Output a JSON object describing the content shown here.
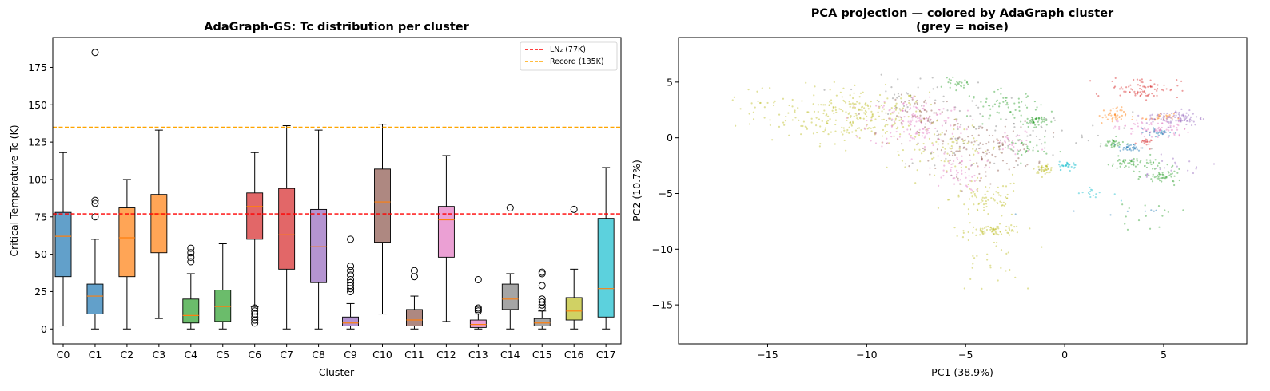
{
  "left_chart": {
    "title": "AdaGraph-GS: Tc distribution per cluster",
    "xlabel": "Cluster",
    "ylabel": "Critical Temperature Tc (K)"
  },
  "right_chart": {
    "title_line1": "PCA projection — colored by AdaGraph cluster",
    "title_line2": "(grey = noise)",
    "xlabel": "PC1 (38.9%)",
    "ylabel": "PC2 (10.7%)"
  },
  "chart_data": [
    {
      "type": "box",
      "title": "AdaGraph-GS: Tc distribution per cluster",
      "xlabel": "Cluster",
      "ylabel": "Critical Temperature Tc (K)",
      "ylim": [
        -10,
        195
      ],
      "yticks": [
        0,
        25,
        50,
        75,
        100,
        125,
        150,
        175
      ],
      "grid": false,
      "legend_position": "top-right",
      "reference_lines": [
        {
          "name": "LN₂ (77K)",
          "y": 77,
          "color": "#ff0000",
          "style": "dashed"
        },
        {
          "name": "Record (135K)",
          "y": 135,
          "color": "#ffa500",
          "style": "dashed"
        }
      ],
      "categories": [
        "C0",
        "C1",
        "C2",
        "C3",
        "C4",
        "C5",
        "C6",
        "C7",
        "C8",
        "C9",
        "C10",
        "C11",
        "C12",
        "C13",
        "C14",
        "C15",
        "C16",
        "C17"
      ],
      "boxes": [
        {
          "name": "C0",
          "whislo": 2,
          "q1": 35,
          "med": 62,
          "q3": 78,
          "whishi": 118,
          "fliers": [],
          "color": "#1f77b4"
        },
        {
          "name": "C1",
          "whislo": 0,
          "q1": 10,
          "med": 22,
          "q3": 30,
          "whishi": 60,
          "fliers": [
            75,
            84,
            86,
            185
          ],
          "color": "#1f77b4"
        },
        {
          "name": "C2",
          "whislo": 0,
          "q1": 35,
          "med": 61,
          "q3": 81,
          "whishi": 100,
          "fliers": [],
          "color": "#ff7f0e"
        },
        {
          "name": "C3",
          "whislo": 7,
          "q1": 51,
          "med": 77,
          "q3": 90,
          "whishi": 133,
          "fliers": [],
          "color": "#ff7f0e"
        },
        {
          "name": "C4",
          "whislo": 0,
          "q1": 4,
          "med": 9,
          "q3": 20,
          "whishi": 37,
          "fliers": [
            45,
            48,
            51,
            54
          ],
          "color": "#2ca02c"
        },
        {
          "name": "C5",
          "whislo": 0,
          "q1": 5,
          "med": 15,
          "q3": 26,
          "whishi": 57,
          "fliers": [],
          "color": "#2ca02c"
        },
        {
          "name": "C6",
          "whislo": 15,
          "q1": 60,
          "med": 82,
          "q3": 91,
          "whishi": 118,
          "fliers": [
            4,
            6,
            8,
            10,
            12,
            14
          ],
          "color": "#d62728"
        },
        {
          "name": "C7",
          "whislo": 0,
          "q1": 40,
          "med": 63,
          "q3": 94,
          "whishi": 136,
          "fliers": [],
          "color": "#d62728"
        },
        {
          "name": "C8",
          "whislo": 0,
          "q1": 31,
          "med": 55,
          "q3": 80,
          "whishi": 133,
          "fliers": [],
          "color": "#9467bd"
        },
        {
          "name": "C9",
          "whislo": 0,
          "q1": 2,
          "med": 4,
          "q3": 8,
          "whishi": 17,
          "fliers": [
            25,
            27,
            29,
            31,
            33,
            36,
            39,
            42,
            60
          ],
          "color": "#9467bd"
        },
        {
          "name": "C10",
          "whislo": 10,
          "q1": 58,
          "med": 85,
          "q3": 107,
          "whishi": 137,
          "fliers": [],
          "color": "#8c564b"
        },
        {
          "name": "C11",
          "whislo": 0,
          "q1": 2,
          "med": 6,
          "q3": 13,
          "whishi": 22,
          "fliers": [
            35,
            39
          ],
          "color": "#8c564b"
        },
        {
          "name": "C12",
          "whislo": 5,
          "q1": 48,
          "med": 73,
          "q3": 82,
          "whishi": 116,
          "fliers": [],
          "color": "#e377c2"
        },
        {
          "name": "C13",
          "whislo": 0,
          "q1": 1,
          "med": 3,
          "q3": 6,
          "whishi": 10,
          "fliers": [
            12,
            13,
            14,
            33
          ],
          "color": "#e377c2"
        },
        {
          "name": "C14",
          "whislo": 0,
          "q1": 13,
          "med": 20,
          "q3": 30,
          "whishi": 37,
          "fliers": [
            81
          ],
          "color": "#7f7f7f"
        },
        {
          "name": "C15",
          "whislo": 0,
          "q1": 2,
          "med": 4,
          "q3": 7,
          "whishi": 12,
          "fliers": [
            14,
            16,
            18,
            20,
            29,
            37,
            38
          ],
          "color": "#7f7f7f"
        },
        {
          "name": "C16",
          "whislo": 0,
          "q1": 6,
          "med": 12,
          "q3": 21,
          "whishi": 40,
          "fliers": [
            80
          ],
          "color": "#bcbd22"
        },
        {
          "name": "C17",
          "whislo": 0,
          "q1": 8,
          "med": 27,
          "q3": 74,
          "whishi": 108,
          "fliers": [],
          "color": "#17becf"
        }
      ]
    },
    {
      "type": "scatter",
      "title": "PCA projection — colored by AdaGraph cluster\n(grey = noise)",
      "xlabel": "PC1 (38.9%)",
      "ylabel": "PC2 (10.7%)",
      "xlim": [
        -19.5,
        9.2
      ],
      "ylim": [
        -18.5,
        9.0
      ],
      "xticks": [
        -15,
        -10,
        -5,
        0,
        5
      ],
      "yticks": [
        5,
        0,
        -5,
        -10,
        -15
      ],
      "grid": false,
      "point_count_per_cluster": "approximate",
      "clusters": [
        {
          "color": "#bcbd22",
          "blobs": [
            [
              -10.5,
              2.0,
              3.0,
              2.0,
              260
            ],
            [
              -6.0,
              -1.0,
              2.5,
              1.5,
              80
            ],
            [
              -4.0,
              -5.5,
              1.5,
              1.5,
              80
            ],
            [
              -3.5,
              -8.3,
              1.2,
              0.4,
              70
            ],
            [
              -1.0,
              -2.8,
              0.4,
              0.3,
              40
            ],
            [
              -4.0,
              -11,
              1.5,
              2.5,
              30
            ],
            [
              -15.5,
              2.5,
              2.0,
              2.0,
              30
            ]
          ]
        },
        {
          "color": "#e377c2",
          "blobs": [
            [
              -7.5,
              1.5,
              2.0,
              2.0,
              150
            ],
            [
              -5.5,
              -3.0,
              1.2,
              1.5,
              60
            ],
            [
              4.5,
              0.8,
              1.5,
              0.8,
              80
            ],
            [
              -2.5,
              -0.5,
              1.0,
              1.0,
              30
            ]
          ]
        },
        {
          "color": "#8c564b",
          "blobs": [
            [
              -4.5,
              -1.0,
              2.5,
              2.0,
              120
            ],
            [
              -7.0,
              2.0,
              1.5,
              1.5,
              50
            ]
          ]
        },
        {
          "color": "#2ca02c",
          "blobs": [
            [
              -3.0,
              3.0,
              1.5,
              1.0,
              60
            ],
            [
              -1.5,
              1.5,
              0.5,
              0.4,
              50
            ],
            [
              3.5,
              -2.3,
              1.2,
              0.5,
              60
            ],
            [
              5.0,
              -3.5,
              0.8,
              0.5,
              50
            ],
            [
              -2.0,
              -1.0,
              1.0,
              1.0,
              30
            ],
            [
              2.5,
              -0.5,
              0.5,
              0.4,
              30
            ],
            [
              -5.5,
              4.8,
              0.5,
              0.4,
              25
            ],
            [
              4.0,
              -7.0,
              1.5,
              1.0,
              15
            ]
          ]
        },
        {
          "color": "#d62728",
          "blobs": [
            [
              4.0,
              4.5,
              1.5,
              0.8,
              80
            ],
            [
              4.0,
              -0.5,
              0.3,
              0.4,
              20
            ]
          ]
        },
        {
          "color": "#ff7f0e",
          "blobs": [
            [
              2.4,
              2.0,
              0.6,
              0.6,
              40
            ],
            [
              4.8,
              1.8,
              0.6,
              0.3,
              25
            ]
          ]
        },
        {
          "color": "#1f77b4",
          "blobs": [
            [
              3.3,
              -0.9,
              0.5,
              0.3,
              35
            ],
            [
              4.8,
              0.5,
              0.6,
              0.3,
              30
            ],
            [
              2.5,
              -6.5,
              2.5,
              0.4,
              8
            ]
          ]
        },
        {
          "color": "#9467bd",
          "blobs": [
            [
              5.6,
              1.8,
              1.2,
              0.6,
              90
            ],
            [
              5.5,
              -2.5,
              2.0,
              1.0,
              20
            ]
          ]
        },
        {
          "color": "#17becf",
          "blobs": [
            [
              0.2,
              -2.5,
              0.4,
              0.3,
              30
            ],
            [
              1.5,
              -5.0,
              0.8,
              0.5,
              15
            ]
          ]
        },
        {
          "color": "#7f7f7f",
          "blobs": [
            [
              -3.0,
              0.5,
              4.5,
              3.0,
              80
            ],
            [
              -8.0,
              4.0,
              2.0,
              1.5,
              30
            ]
          ]
        }
      ]
    }
  ]
}
